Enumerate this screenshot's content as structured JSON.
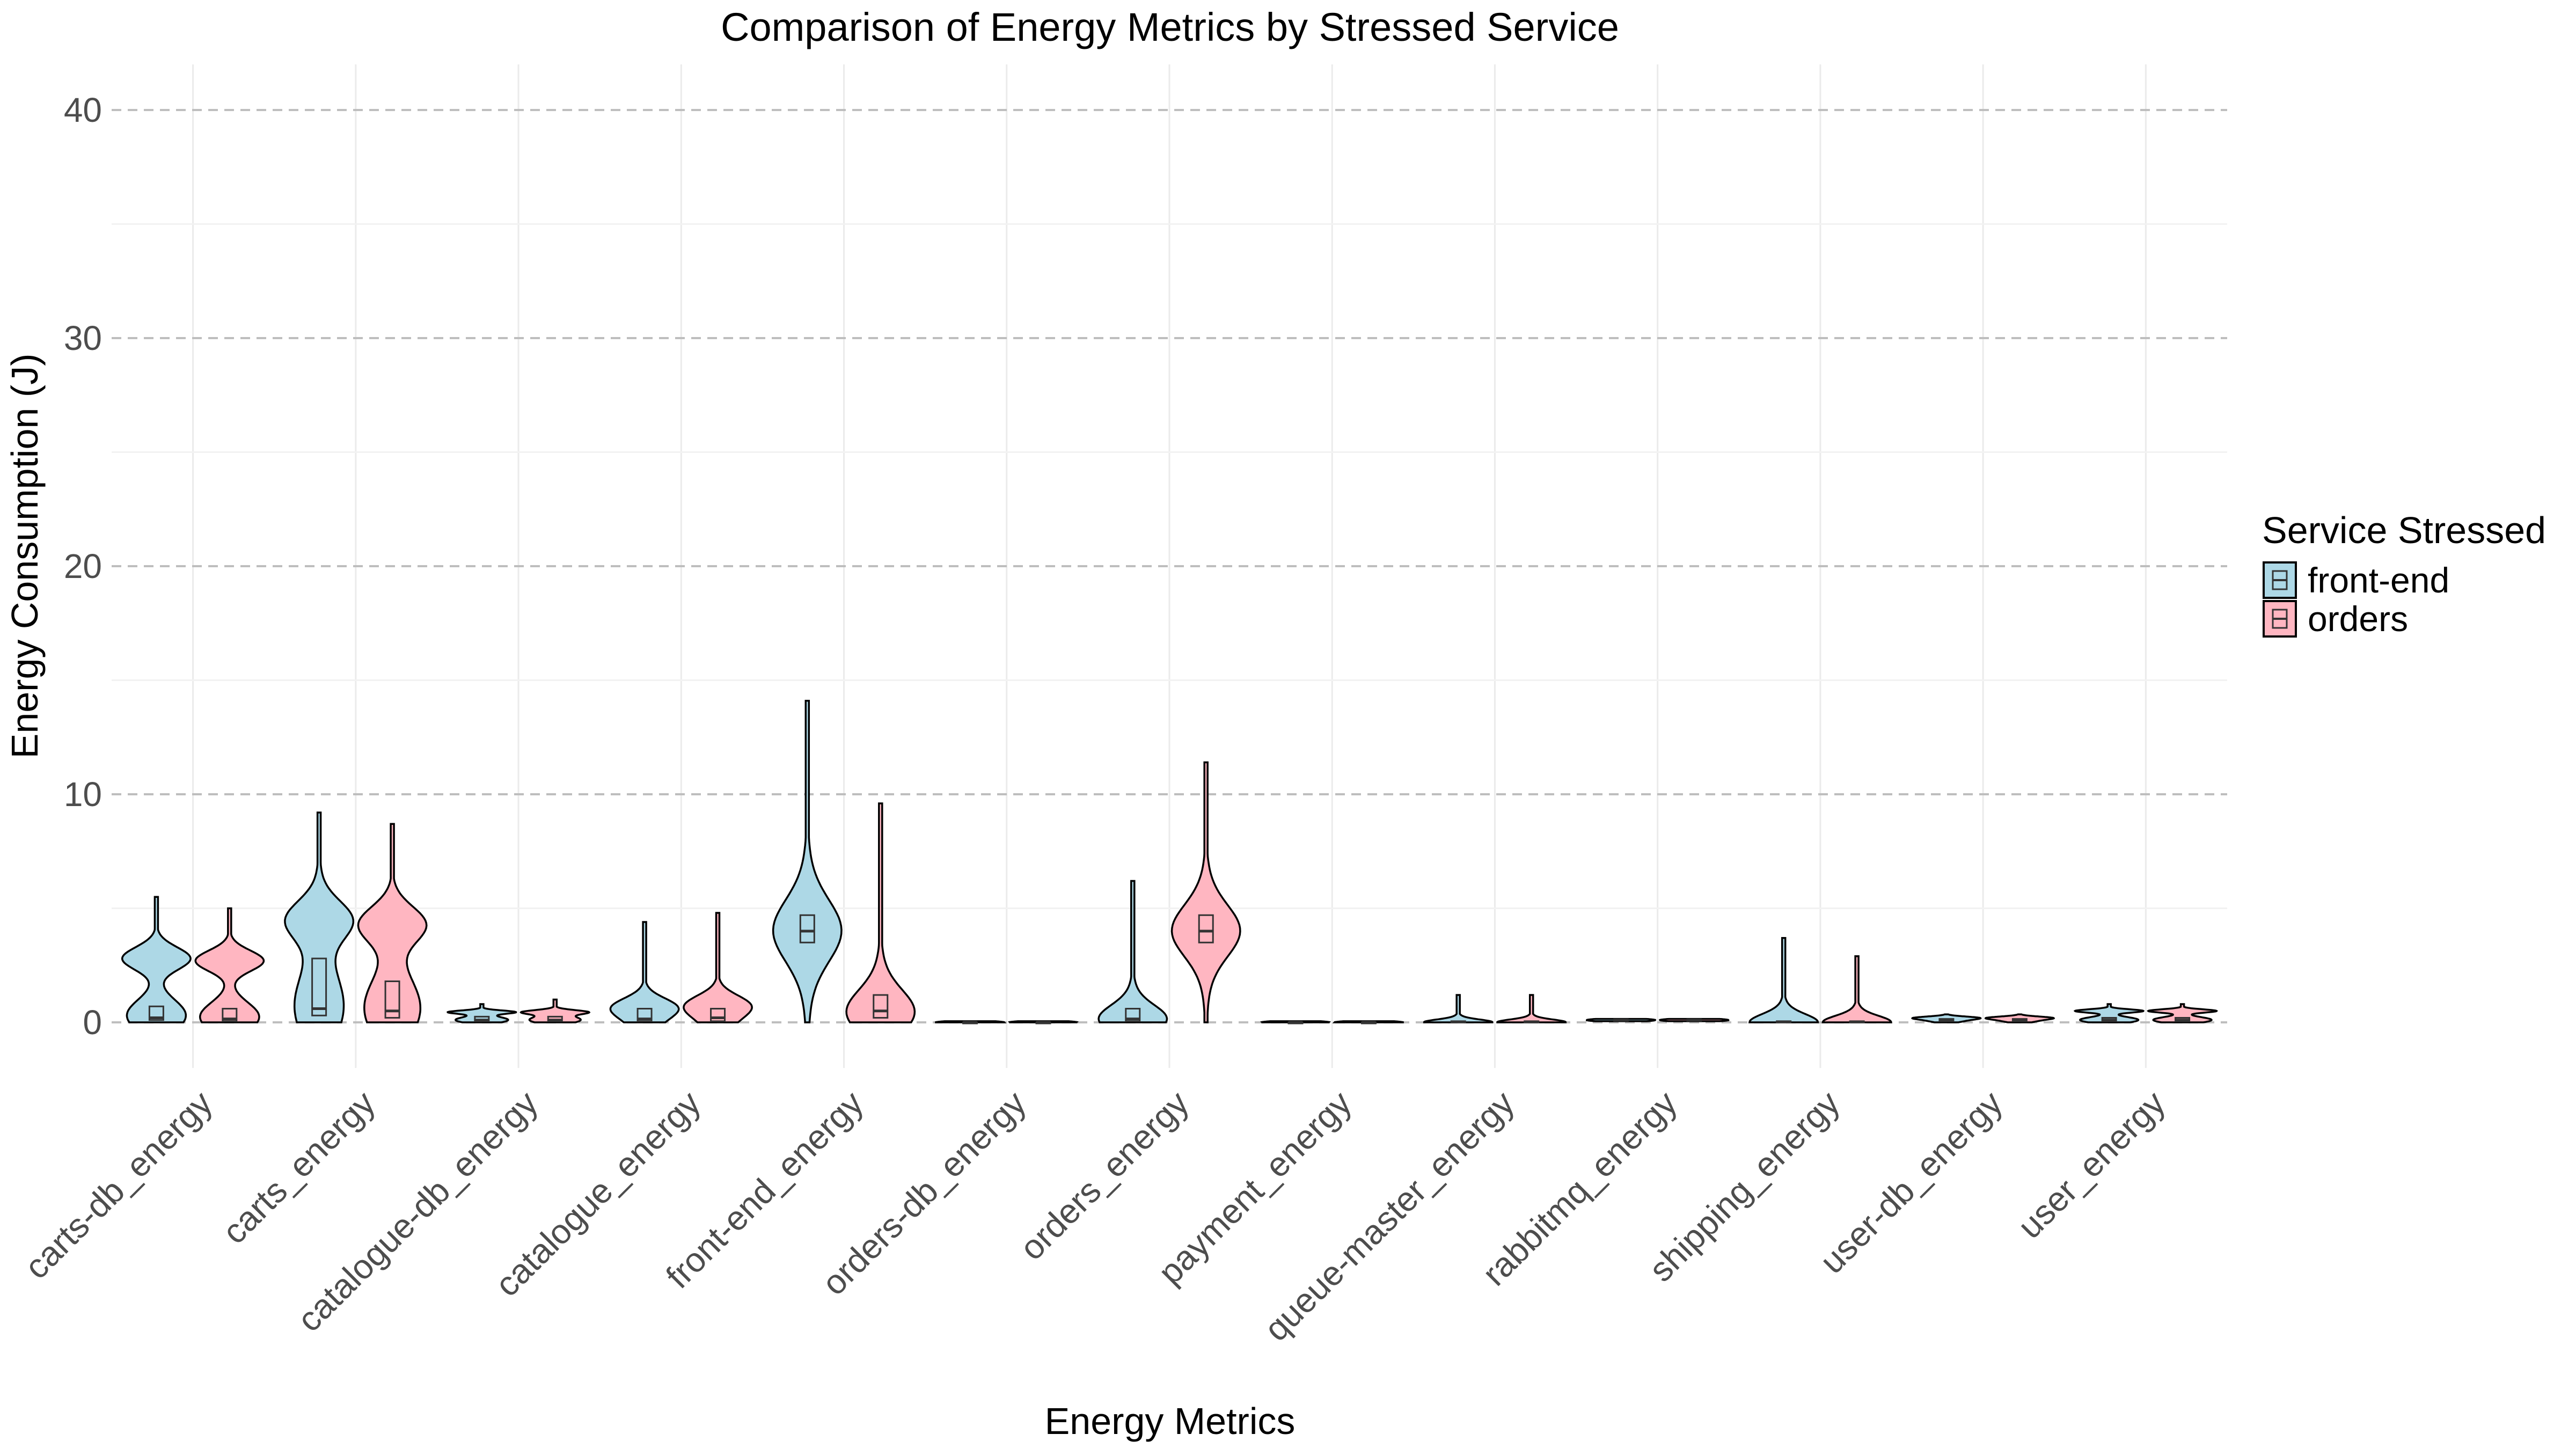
{
  "chart_data": {
    "type": "violin",
    "title": "Comparison of Energy Metrics by Stressed Service",
    "xlabel": "Energy Metrics",
    "ylabel": "Energy Consumption (J)",
    "ylim": [
      -2,
      42
    ],
    "yticks": [
      0,
      10,
      20,
      30,
      40
    ],
    "y_gridlines": "dashed at major ticks",
    "legend": {
      "title": "Service Stressed",
      "position": "right"
    },
    "categories": [
      "carts-db_energy",
      "carts_energy",
      "catalogue-db_energy",
      "catalogue_energy",
      "front-end_energy",
      "orders-db_energy",
      "orders_energy",
      "payment_energy",
      "queue-master_energy",
      "rabbitmq_energy",
      "shipping_energy",
      "user-db_energy",
      "user_energy"
    ],
    "series": [
      {
        "name": "front-end",
        "color": "#add8e6",
        "values": [
          {
            "min": 0,
            "q1": 0.1,
            "median": 0.2,
            "q3": 0.7,
            "max": 5.5,
            "mode": 2.8
          },
          {
            "min": 0,
            "q1": 0.3,
            "median": 0.6,
            "q3": 2.8,
            "max": 9.2,
            "mode": 4.5
          },
          {
            "min": 0,
            "q1": 0.05,
            "median": 0.1,
            "q3": 0.25,
            "max": 0.8,
            "mode": 0.45
          },
          {
            "min": 0,
            "q1": 0.05,
            "median": 0.15,
            "q3": 0.6,
            "max": 4.4,
            "mode": 0.7
          },
          {
            "min": 0,
            "q1": 3.5,
            "median": 4.0,
            "q3": 4.7,
            "max": 14.1,
            "mode": 4.0
          },
          {
            "min": 0,
            "q1": 0,
            "median": 0,
            "q3": 0,
            "max": 0.05,
            "mode": 0
          },
          {
            "min": 0,
            "q1": 0.05,
            "median": 0.15,
            "q3": 0.6,
            "max": 6.2,
            "mode": 0.1
          },
          {
            "min": 0,
            "q1": 0,
            "median": 0,
            "q3": 0,
            "max": 0.05,
            "mode": 0
          },
          {
            "min": 0,
            "q1": 0,
            "median": 0.02,
            "q3": 0.05,
            "max": 1.2,
            "mode": 0
          },
          {
            "min": 0.05,
            "q1": 0.08,
            "median": 0.1,
            "q3": 0.12,
            "max": 0.15,
            "mode": 0.1
          },
          {
            "min": 0,
            "q1": 0,
            "median": 0.02,
            "q3": 0.05,
            "max": 3.7,
            "mode": 0
          },
          {
            "min": 0,
            "q1": 0.05,
            "median": 0.1,
            "q3": 0.15,
            "max": 0.35,
            "mode": 0.2
          },
          {
            "min": 0,
            "q1": 0.05,
            "median": 0.1,
            "q3": 0.2,
            "max": 0.8,
            "mode": 0.5
          }
        ]
      },
      {
        "name": "orders",
        "color": "#ffb6c1",
        "values": [
          {
            "min": 0,
            "q1": 0.05,
            "median": 0.15,
            "q3": 0.6,
            "max": 5.0,
            "mode": 2.7
          },
          {
            "min": 0,
            "q1": 0.2,
            "median": 0.5,
            "q3": 1.8,
            "max": 8.7,
            "mode": 4.3
          },
          {
            "min": 0,
            "q1": 0.05,
            "median": 0.1,
            "q3": 0.25,
            "max": 1.0,
            "mode": 0.45
          },
          {
            "min": 0,
            "q1": 0.05,
            "median": 0.2,
            "q3": 0.6,
            "max": 4.8,
            "mode": 0.8
          },
          {
            "min": 0,
            "q1": 0.2,
            "median": 0.5,
            "q3": 1.2,
            "max": 9.6,
            "mode": 0.4
          },
          {
            "min": 0,
            "q1": 0,
            "median": 0,
            "q3": 0,
            "max": 0.05,
            "mode": 0
          },
          {
            "min": 0,
            "q1": 3.5,
            "median": 4.0,
            "q3": 4.7,
            "max": 11.4,
            "mode": 4.0
          },
          {
            "min": 0,
            "q1": 0,
            "median": 0,
            "q3": 0,
            "max": 0.05,
            "mode": 0
          },
          {
            "min": 0,
            "q1": 0,
            "median": 0.02,
            "q3": 0.05,
            "max": 1.2,
            "mode": 0
          },
          {
            "min": 0.05,
            "q1": 0.08,
            "median": 0.1,
            "q3": 0.12,
            "max": 0.15,
            "mode": 0.1
          },
          {
            "min": 0,
            "q1": 0,
            "median": 0.02,
            "q3": 0.05,
            "max": 2.9,
            "mode": 0
          },
          {
            "min": 0,
            "q1": 0.05,
            "median": 0.1,
            "q3": 0.15,
            "max": 0.35,
            "mode": 0.2
          },
          {
            "min": 0,
            "q1": 0.05,
            "median": 0.1,
            "q3": 0.2,
            "max": 0.8,
            "mode": 0.5
          }
        ]
      }
    ]
  }
}
